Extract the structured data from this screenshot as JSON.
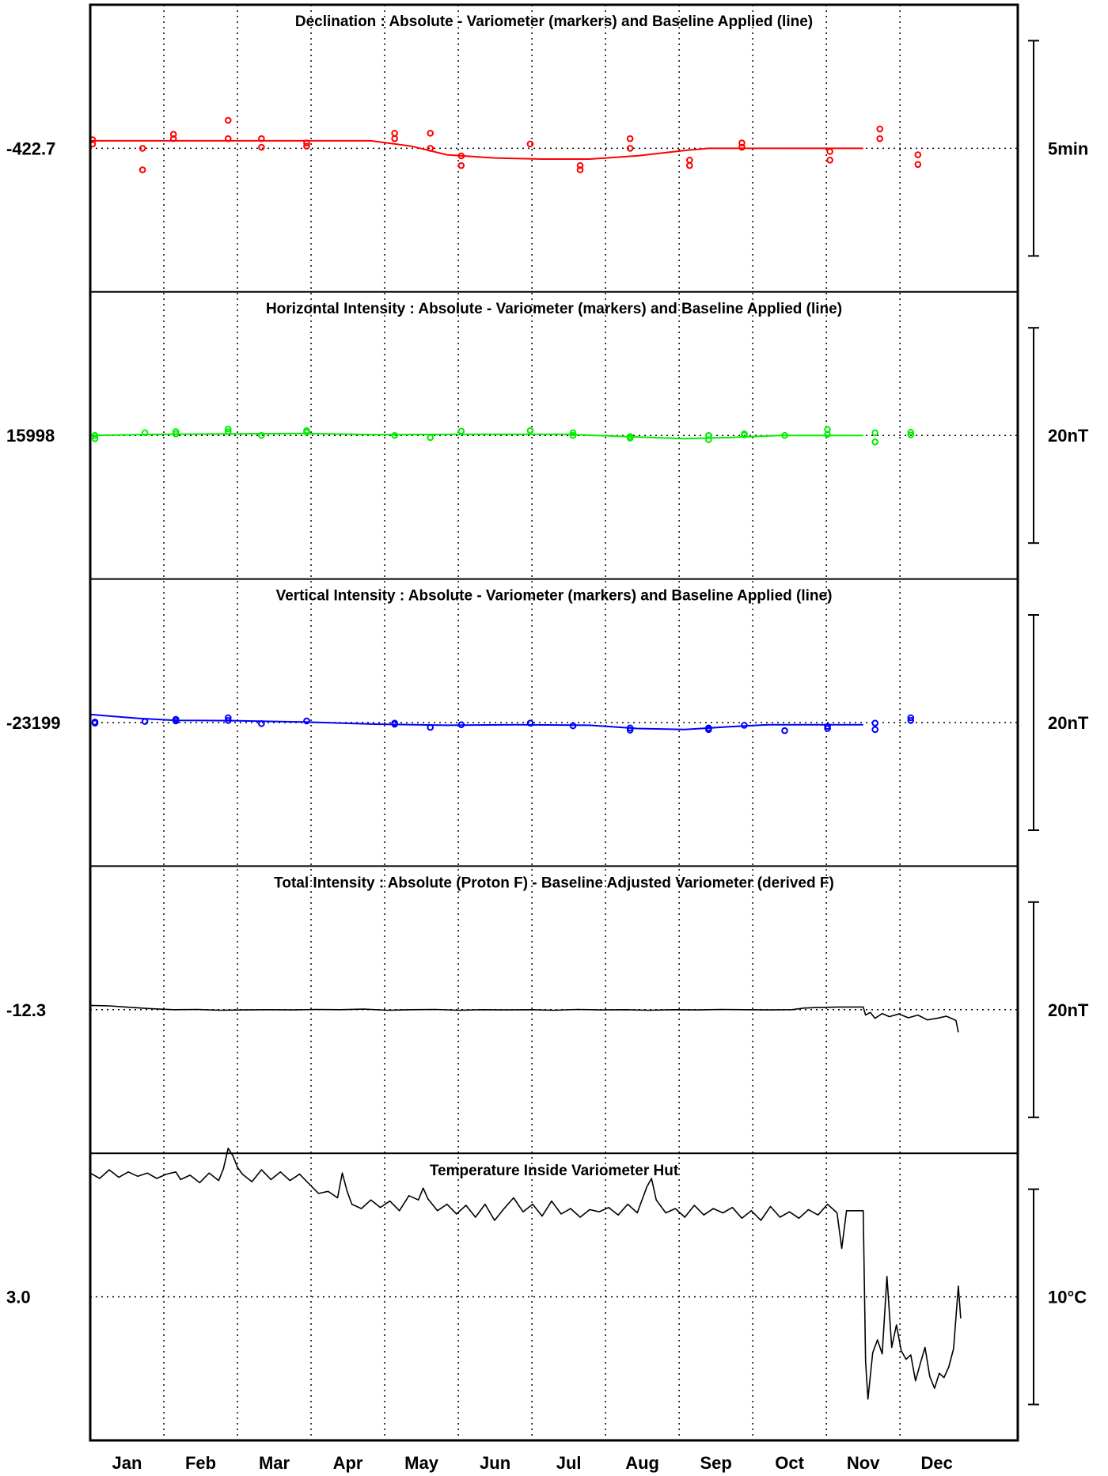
{
  "chart_data": {
    "type": "line",
    "x_axis": {
      "months": [
        "Jan",
        "Feb",
        "Mar",
        "Apr",
        "May",
        "Jun",
        "Jul",
        "Aug",
        "Sep",
        "Oct",
        "Nov",
        "Dec"
      ],
      "range_days": [
        0,
        365
      ],
      "grid": true
    },
    "panels": [
      {
        "id": "declination",
        "title": "Declination : Absolute - Variometer (markers) and Baseline Applied (line)",
        "center_label": "-422.7",
        "scale_label": "5min",
        "color": "#ff0000",
        "center_value": 0,
        "half_range": 5,
        "baseline": [
          [
            0,
            0.35
          ],
          [
            35,
            0.35
          ],
          [
            70,
            0.35
          ],
          [
            100,
            0.35
          ],
          [
            118,
            0.35
          ],
          [
            135,
            0.1
          ],
          [
            150,
            -0.3
          ],
          [
            170,
            -0.45
          ],
          [
            190,
            -0.5
          ],
          [
            210,
            -0.5
          ],
          [
            230,
            -0.35
          ],
          [
            250,
            -0.1
          ],
          [
            260,
            0.0
          ],
          [
            300,
            0.0
          ],
          [
            325,
            0.0
          ]
        ],
        "markers": [
          [
            1,
            0.4
          ],
          [
            1,
            0.2
          ],
          [
            22,
            0.0
          ],
          [
            22,
            -1.0
          ],
          [
            35,
            0.65
          ],
          [
            35,
            0.45
          ],
          [
            58,
            1.3
          ],
          [
            58,
            0.45
          ],
          [
            72,
            0.45
          ],
          [
            72,
            0.05
          ],
          [
            91,
            0.25
          ],
          [
            91,
            0.1
          ],
          [
            128,
            0.7
          ],
          [
            128,
            0.45
          ],
          [
            143,
            0.7
          ],
          [
            143,
            0.0
          ],
          [
            156,
            -0.35
          ],
          [
            156,
            -0.8
          ],
          [
            185,
            0.2
          ],
          [
            206,
            -0.8
          ],
          [
            206,
            -1.0
          ],
          [
            227,
            0.45
          ],
          [
            227,
            0.0
          ],
          [
            252,
            -0.55
          ],
          [
            252,
            -0.8
          ],
          [
            274,
            0.25
          ],
          [
            274,
            0.05
          ],
          [
            311,
            -0.15
          ],
          [
            311,
            -0.55
          ],
          [
            332,
            0.9
          ],
          [
            332,
            0.45
          ],
          [
            348,
            -0.3
          ],
          [
            348,
            -0.75
          ]
        ]
      },
      {
        "id": "horizontal",
        "title": "Horizontal Intensity : Absolute - Variometer (markers) and Baseline Applied (line)",
        "center_label": "15998",
        "scale_label": "20nT",
        "color": "#00ee00",
        "center_value": 0,
        "half_range": 20,
        "baseline": [
          [
            0,
            0.0
          ],
          [
            30,
            0.2
          ],
          [
            60,
            0.3
          ],
          [
            90,
            0.35
          ],
          [
            120,
            0.15
          ],
          [
            160,
            0.2
          ],
          [
            200,
            0.2
          ],
          [
            225,
            -0.2
          ],
          [
            250,
            -0.6
          ],
          [
            268,
            -0.4
          ],
          [
            290,
            0.0
          ],
          [
            325,
            0.0
          ]
        ],
        "markers": [
          [
            2,
            0.0
          ],
          [
            2,
            -0.6
          ],
          [
            23,
            0.5
          ],
          [
            36,
            0.7
          ],
          [
            36,
            0.25
          ],
          [
            58,
            1.2
          ],
          [
            58,
            0.7
          ],
          [
            72,
            0.0
          ],
          [
            91,
            0.9
          ],
          [
            91,
            0.6
          ],
          [
            128,
            0.0
          ],
          [
            143,
            -0.4
          ],
          [
            156,
            0.8
          ],
          [
            185,
            0.9
          ],
          [
            203,
            0.5
          ],
          [
            203,
            0.0
          ],
          [
            227,
            -0.2
          ],
          [
            227,
            -0.5
          ],
          [
            260,
            0.0
          ],
          [
            260,
            -0.8
          ],
          [
            275,
            0.3
          ],
          [
            275,
            0.1
          ],
          [
            292,
            0.0
          ],
          [
            310,
            1.1
          ],
          [
            310,
            0.2
          ],
          [
            330,
            0.5
          ],
          [
            330,
            -1.2
          ],
          [
            345,
            0.6
          ],
          [
            345,
            0.1
          ]
        ]
      },
      {
        "id": "vertical",
        "title": "Vertical Intensity : Absolute - Variometer (markers) and Baseline Applied (line)",
        "center_label": "-23199",
        "scale_label": "20nT",
        "color": "#0000ff",
        "center_value": 0,
        "half_range": 20,
        "baseline": [
          [
            0,
            1.5
          ],
          [
            20,
            0.8
          ],
          [
            36,
            0.4
          ],
          [
            60,
            0.35
          ],
          [
            90,
            0.1
          ],
          [
            120,
            -0.3
          ],
          [
            150,
            -0.5
          ],
          [
            180,
            -0.4
          ],
          [
            210,
            -0.5
          ],
          [
            230,
            -1.1
          ],
          [
            250,
            -1.3
          ],
          [
            268,
            -0.8
          ],
          [
            285,
            -0.4
          ],
          [
            325,
            -0.4
          ]
        ],
        "markers": [
          [
            2,
            0.1
          ],
          [
            2,
            -0.1
          ],
          [
            23,
            0.2
          ],
          [
            36,
            0.6
          ],
          [
            36,
            0.3
          ],
          [
            58,
            0.9
          ],
          [
            58,
            0.4
          ],
          [
            72,
            -0.2
          ],
          [
            91,
            0.3
          ],
          [
            128,
            -0.3
          ],
          [
            128,
            -0.1
          ],
          [
            143,
            -0.9
          ],
          [
            156,
            -0.4
          ],
          [
            185,
            -0.1
          ],
          [
            203,
            -0.6
          ],
          [
            227,
            -1.0
          ],
          [
            227,
            -1.4
          ],
          [
            260,
            -1.3
          ],
          [
            260,
            -1.0
          ],
          [
            275,
            -0.5
          ],
          [
            292,
            -1.5
          ],
          [
            310,
            -0.7
          ],
          [
            310,
            -1.1
          ],
          [
            330,
            -0.1
          ],
          [
            330,
            -1.3
          ],
          [
            345,
            0.9
          ],
          [
            345,
            0.4
          ]
        ]
      },
      {
        "id": "total",
        "title": "Total Intensity : Absolute (Proton F) - Baseline Adjusted Variometer (derived F)",
        "center_label": "-12.3",
        "scale_label": "20nT",
        "color": "#000000",
        "center_value": 0,
        "half_range": 20,
        "series": [
          [
            0,
            0.8
          ],
          [
            8,
            0.7
          ],
          [
            15,
            0.5
          ],
          [
            25,
            0.2
          ],
          [
            35,
            0.0
          ],
          [
            45,
            0.05
          ],
          [
            55,
            -0.1
          ],
          [
            65,
            -0.05
          ],
          [
            75,
            0.0
          ],
          [
            85,
            -0.05
          ],
          [
            95,
            0.05
          ],
          [
            105,
            0.0
          ],
          [
            115,
            0.1
          ],
          [
            125,
            -0.1
          ],
          [
            135,
            0.0
          ],
          [
            145,
            0.05
          ],
          [
            155,
            -0.1
          ],
          [
            165,
            0.0
          ],
          [
            175,
            -0.05
          ],
          [
            185,
            0.0
          ],
          [
            195,
            -0.1
          ],
          [
            205,
            0.05
          ],
          [
            215,
            -0.05
          ],
          [
            225,
            0.0
          ],
          [
            235,
            -0.1
          ],
          [
            245,
            0.0
          ],
          [
            255,
            -0.05
          ],
          [
            265,
            0.05
          ],
          [
            275,
            0.0
          ],
          [
            285,
            -0.05
          ],
          [
            295,
            0.0
          ],
          [
            300,
            0.3
          ],
          [
            305,
            0.4
          ],
          [
            315,
            0.5
          ],
          [
            325,
            0.5
          ],
          [
            326,
            -1.0
          ],
          [
            328,
            -0.5
          ],
          [
            330,
            -1.6
          ],
          [
            333,
            -0.7
          ],
          [
            336,
            -1.3
          ],
          [
            340,
            -0.8
          ],
          [
            344,
            -1.5
          ],
          [
            348,
            -1.0
          ],
          [
            352,
            -1.9
          ],
          [
            356,
            -1.6
          ],
          [
            360,
            -1.2
          ],
          [
            364,
            -2.0
          ],
          [
            365,
            -4.2
          ]
        ]
      },
      {
        "id": "temperature",
        "title": "Temperature Inside Variometer Hut",
        "center_label": "3.0",
        "scale_label": "10°C",
        "color": "#000000",
        "center_value": 0,
        "half_range": 10,
        "series": [
          [
            0,
            11.5
          ],
          [
            4,
            11.0
          ],
          [
            8,
            11.8
          ],
          [
            12,
            11.1
          ],
          [
            16,
            11.6
          ],
          [
            20,
            11.2
          ],
          [
            24,
            11.5
          ],
          [
            28,
            11.0
          ],
          [
            32,
            11.4
          ],
          [
            36,
            11.6
          ],
          [
            38,
            10.9
          ],
          [
            42,
            11.3
          ],
          [
            46,
            10.6
          ],
          [
            50,
            11.5
          ],
          [
            54,
            10.8
          ],
          [
            56,
            11.9
          ],
          [
            58,
            13.8
          ],
          [
            60,
            13.1
          ],
          [
            62,
            12.0
          ],
          [
            64,
            11.4
          ],
          [
            68,
            10.7
          ],
          [
            72,
            11.8
          ],
          [
            76,
            10.9
          ],
          [
            80,
            11.6
          ],
          [
            84,
            10.8
          ],
          [
            88,
            11.4
          ],
          [
            92,
            10.5
          ],
          [
            96,
            9.6
          ],
          [
            100,
            9.8
          ],
          [
            104,
            9.2
          ],
          [
            106,
            11.5
          ],
          [
            108,
            9.8
          ],
          [
            110,
            8.6
          ],
          [
            114,
            8.2
          ],
          [
            118,
            9.0
          ],
          [
            122,
            8.3
          ],
          [
            126,
            8.9
          ],
          [
            130,
            8.0
          ],
          [
            134,
            9.4
          ],
          [
            138,
            9.0
          ],
          [
            140,
            10.1
          ],
          [
            142,
            9.1
          ],
          [
            146,
            8.0
          ],
          [
            150,
            8.6
          ],
          [
            154,
            7.7
          ],
          [
            158,
            8.5
          ],
          [
            162,
            7.4
          ],
          [
            166,
            8.6
          ],
          [
            170,
            7.1
          ],
          [
            174,
            8.2
          ],
          [
            178,
            9.2
          ],
          [
            182,
            7.9
          ],
          [
            186,
            8.6
          ],
          [
            190,
            7.5
          ],
          [
            194,
            8.9
          ],
          [
            198,
            7.7
          ],
          [
            202,
            8.2
          ],
          [
            206,
            7.4
          ],
          [
            210,
            8.1
          ],
          [
            214,
            7.9
          ],
          [
            218,
            8.3
          ],
          [
            222,
            7.6
          ],
          [
            226,
            8.6
          ],
          [
            230,
            7.8
          ],
          [
            234,
            10.2
          ],
          [
            236,
            11.0
          ],
          [
            238,
            9.0
          ],
          [
            242,
            7.8
          ],
          [
            246,
            8.2
          ],
          [
            250,
            7.4
          ],
          [
            254,
            8.5
          ],
          [
            258,
            7.6
          ],
          [
            262,
            8.2
          ],
          [
            266,
            7.8
          ],
          [
            270,
            8.3
          ],
          [
            274,
            7.3
          ],
          [
            278,
            8.0
          ],
          [
            282,
            7.1
          ],
          [
            286,
            8.4
          ],
          [
            290,
            7.4
          ],
          [
            294,
            7.9
          ],
          [
            298,
            7.3
          ],
          [
            302,
            8.1
          ],
          [
            306,
            7.6
          ],
          [
            310,
            8.6
          ],
          [
            314,
            7.8
          ],
          [
            316,
            4.5
          ],
          [
            318,
            8.0
          ],
          [
            324,
            8.0
          ],
          [
            325,
            8.0
          ],
          [
            326,
            -6.0
          ],
          [
            327,
            -9.5
          ],
          [
            329,
            -5.2
          ],
          [
            331,
            -4.0
          ],
          [
            333,
            -5.3
          ],
          [
            335,
            1.9
          ],
          [
            337,
            -4.7
          ],
          [
            339,
            -2.6
          ],
          [
            341,
            -5.0
          ],
          [
            343,
            -5.8
          ],
          [
            345,
            -5.4
          ],
          [
            347,
            -7.8
          ],
          [
            349,
            -6.2
          ],
          [
            351,
            -4.7
          ],
          [
            353,
            -7.4
          ],
          [
            355,
            -8.5
          ],
          [
            357,
            -7.1
          ],
          [
            359,
            -7.5
          ],
          [
            361,
            -6.5
          ],
          [
            363,
            -4.8
          ],
          [
            365,
            1.0
          ],
          [
            366,
            -2.0
          ]
        ]
      }
    ]
  }
}
